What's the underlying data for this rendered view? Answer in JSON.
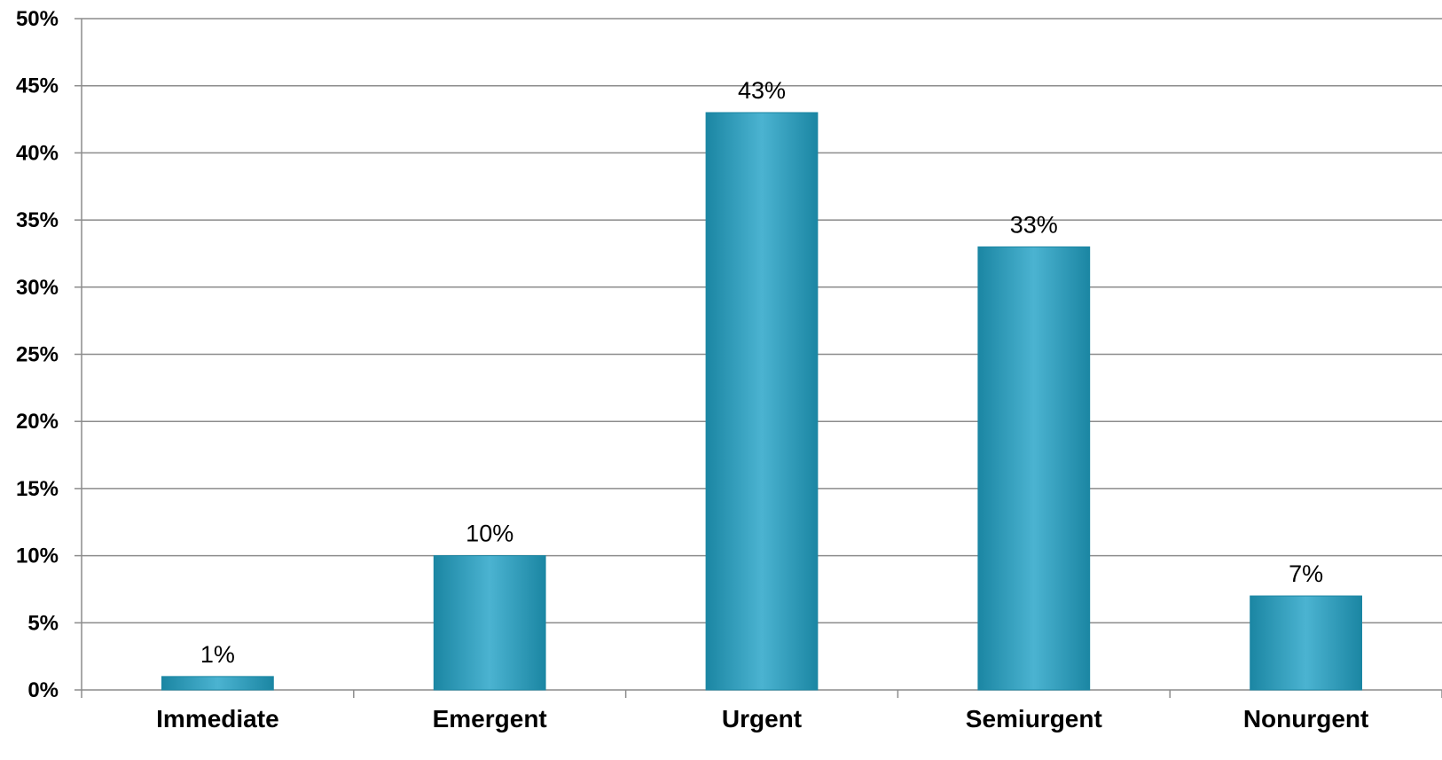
{
  "chart_data": {
    "type": "bar",
    "categories": [
      "Immediate",
      "Emergent",
      "Urgent",
      "Semiurgent",
      "Nonurgent"
    ],
    "values": [
      1,
      10,
      43,
      33,
      7
    ],
    "data_labels": [
      "1%",
      "10%",
      "43%",
      "33%",
      "7%"
    ],
    "ylim": [
      0,
      50
    ],
    "y_ticks": [
      "0%",
      "5%",
      "10%",
      "15%",
      "20%",
      "25%",
      "30%",
      "35%",
      "40%",
      "45%",
      "50%"
    ],
    "grid": true,
    "legend": "none",
    "bar_color": "#2a9cbb",
    "bar_color_light": "#4bb3d1",
    "bar_color_dark": "#1b86a3"
  }
}
